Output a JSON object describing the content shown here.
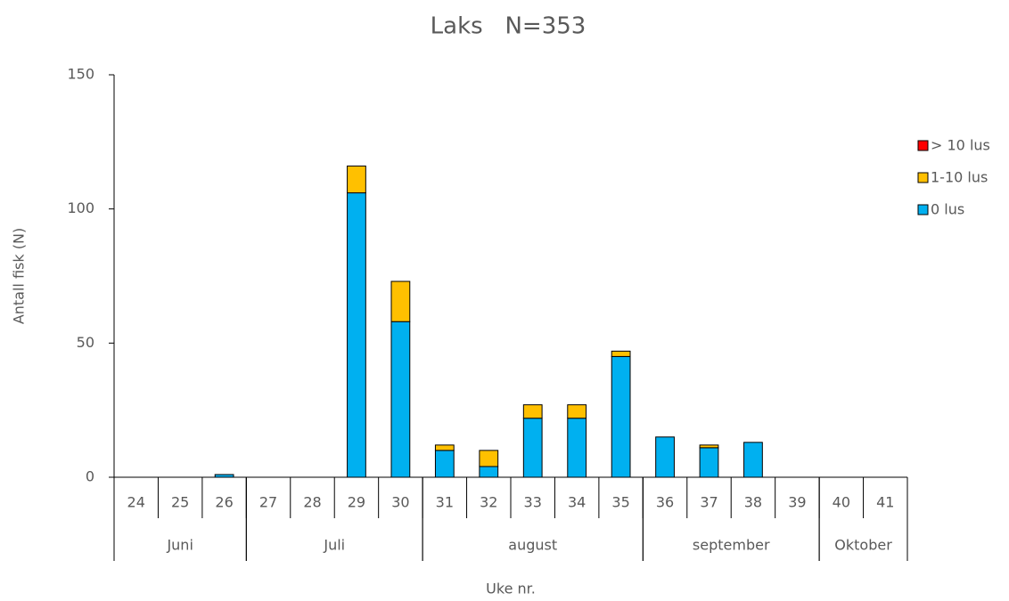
{
  "chart_data": {
    "type": "stacked_bar",
    "title": "Laks   N=353",
    "y_label": "Antall fisk (N)",
    "x_label": "Uke nr.",
    "categories": [
      "24",
      "25",
      "26",
      "27",
      "28",
      "29",
      "30",
      "31",
      "32",
      "33",
      "34",
      "35",
      "36",
      "37",
      "38",
      "39",
      "40",
      "41"
    ],
    "groups": [
      {
        "label": "Juni",
        "count": 3
      },
      {
        "label": "Juli",
        "count": 4
      },
      {
        "label": "august",
        "count": 5
      },
      {
        "label": "september",
        "count": 4
      },
      {
        "label": "Oktober",
        "count": 2
      }
    ],
    "series": [
      {
        "name": "0 lus",
        "color": "#00b0f0",
        "values": [
          0,
          0,
          1,
          0,
          0,
          106,
          58,
          10,
          4,
          22,
          22,
          45,
          15,
          11,
          13,
          0,
          0,
          0
        ]
      },
      {
        "name": "1-10 lus",
        "color": "#ffc000",
        "values": [
          0,
          0,
          0,
          0,
          0,
          10,
          15,
          2,
          6,
          5,
          5,
          2,
          0,
          1,
          0,
          0,
          0,
          0
        ]
      },
      {
        "name": "> 10 lus",
        "color": "#ff0000",
        "values": [
          0,
          0,
          0,
          0,
          0,
          0,
          0,
          0,
          0,
          0,
          0,
          0,
          0,
          0,
          0,
          0,
          0,
          0
        ]
      }
    ],
    "ylim": [
      0,
      150
    ],
    "yticks": [
      0,
      50,
      100,
      150
    ],
    "grid": false,
    "legend": "right"
  }
}
